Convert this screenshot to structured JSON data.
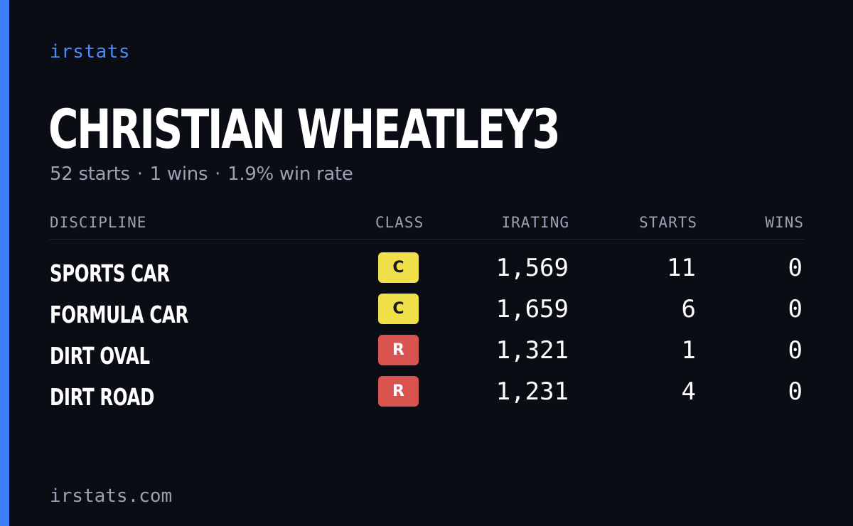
{
  "brand": "irstats",
  "player": {
    "name": "CHRISTIAN WHEATLEY3",
    "starts_text": "52 starts",
    "wins_text": "1 wins",
    "win_rate_text": "1.9% win rate",
    "separator": "·"
  },
  "table": {
    "headers": {
      "discipline": "DISCIPLINE",
      "class": "CLASS",
      "irating": "IRATING",
      "starts": "STARTS",
      "wins": "WINS"
    },
    "rows": [
      {
        "discipline": "SPORTS CAR",
        "class": "C",
        "irating": "1,569",
        "starts": "11",
        "wins": "0"
      },
      {
        "discipline": "FORMULA CAR",
        "class": "C",
        "irating": "1,659",
        "starts": "6",
        "wins": "0"
      },
      {
        "discipline": "DIRT OVAL",
        "class": "R",
        "irating": "1,321",
        "starts": "1",
        "wins": "0"
      },
      {
        "discipline": "DIRT ROAD",
        "class": "R",
        "irating": "1,231",
        "starts": "4",
        "wins": "0"
      }
    ]
  },
  "footer": "irstats.com",
  "colors": {
    "background": "#0a0d14",
    "accent": "#3d7eff",
    "brand_text": "#4b8bf5",
    "muted_text": "#98a2b3",
    "class_c": "#f0e14a",
    "class_r": "#d9534f"
  }
}
